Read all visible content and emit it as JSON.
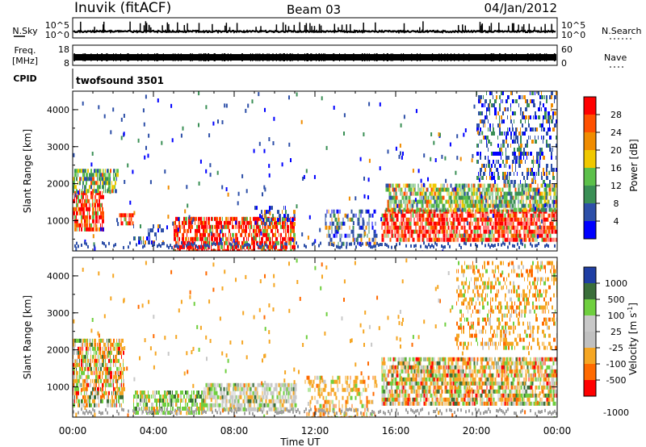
{
  "header": {
    "station": "Inuvik (fitACF)",
    "beam": "Beam 03",
    "date": "04/Jan/2012"
  },
  "strips": {
    "nsky": {
      "label": "N.Sky",
      "right_label": "N.Search",
      "ticks": [
        "10^5",
        "10^0"
      ],
      "right_ticks": [
        "10^5",
        "10^0"
      ]
    },
    "freq": {
      "label_line1": "Freq.",
      "label_line2": "[MHz]",
      "ticks": [
        "18",
        "8"
      ],
      "right_ticks": [
        "60",
        "0"
      ],
      "right_label": "Nave"
    },
    "cpid": {
      "label": "CPID",
      "value": "twofsound 3501"
    }
  },
  "colors": {
    "power": [
      "#0000ff",
      "#2d4fa8",
      "#3a8f55",
      "#5cc04a",
      "#f0c800",
      "#f08c00",
      "#ff5000",
      "#ff0000"
    ],
    "velocity": [
      "#1f3ea3",
      "#3a6e3a",
      "#6fcf3f",
      "#c8c8c8",
      "#c0c0c0",
      "#f5a623",
      "#ff6a00",
      "#ff0000"
    ],
    "ground_scatter": "#a0a0a0"
  },
  "chart_data": [
    {
      "type": "heatmap",
      "title": "",
      "xlabel": "",
      "ylabel": "Slant Range [km]",
      "x_ticks": [
        "00:00",
        "04:00",
        "08:00",
        "12:00",
        "16:00",
        "20:00",
        "00:00"
      ],
      "y_ticks": [
        "1000",
        "2000",
        "3000",
        "4000"
      ],
      "x_range_hours": [
        0,
        24
      ],
      "ylim": [
        180,
        4500
      ],
      "colorbar": {
        "label": "Power [dB]",
        "ticks": [
          "28",
          "24",
          "20",
          "16",
          "12",
          "8",
          "4"
        ],
        "range": [
          0,
          32
        ]
      },
      "echo_regions": [
        {
          "t": [
            0.0,
            1.5
          ],
          "r": [
            800,
            1800
          ],
          "level": "high"
        },
        {
          "t": [
            0.0,
            2.2
          ],
          "r": [
            1800,
            2400
          ],
          "level": "mid"
        },
        {
          "t": [
            2.3,
            3.0
          ],
          "r": [
            900,
            1200
          ],
          "level": "high"
        },
        {
          "t": [
            3.0,
            4.5
          ],
          "r": [
            400,
            900
          ],
          "level": "low"
        },
        {
          "t": [
            5.0,
            11.0
          ],
          "r": [
            200,
            1100
          ],
          "level": "high"
        },
        {
          "t": [
            9.0,
            11.0
          ],
          "r": [
            900,
            1400
          ],
          "level": "low"
        },
        {
          "t": [
            12.5,
            15.0
          ],
          "r": [
            400,
            1300
          ],
          "level": "low"
        },
        {
          "t": [
            15.3,
            24.0
          ],
          "r": [
            500,
            1300
          ],
          "level": "high"
        },
        {
          "t": [
            15.5,
            24.0
          ],
          "r": [
            1300,
            2000
          ],
          "level": "mid"
        },
        {
          "t": [
            20.0,
            24.0
          ],
          "r": [
            2000,
            4500
          ],
          "level": "low"
        }
      ]
    },
    {
      "type": "heatmap",
      "title": "",
      "xlabel": "Time UT",
      "ylabel": "Slant Range [km]",
      "x_ticks": [
        "00:00",
        "04:00",
        "08:00",
        "12:00",
        "16:00",
        "20:00",
        "00:00"
      ],
      "y_ticks": [
        "1000",
        "2000",
        "3000",
        "4000"
      ],
      "x_range_hours": [
        0,
        24
      ],
      "ylim": [
        180,
        4500
      ],
      "colorbar": {
        "label": "Velocity [m s^-1]",
        "ticks": [
          "1000",
          "500",
          "100",
          "25",
          "-25",
          "-100",
          "-500",
          "-1000"
        ],
        "range": [
          -1000,
          1000
        ]
      },
      "echo_regions": [
        {
          "t": [
            0.0,
            2.5
          ],
          "r": [
            500,
            2300
          ],
          "type": "mixed"
        },
        {
          "t": [
            3.0,
            6.5
          ],
          "r": [
            300,
            900
          ],
          "type": "green"
        },
        {
          "t": [
            6.5,
            11.0
          ],
          "r": [
            400,
            1100
          ],
          "type": "ground"
        },
        {
          "t": [
            11.5,
            15.0
          ],
          "r": [
            200,
            1300
          ],
          "type": "orange"
        },
        {
          "t": [
            15.3,
            24.0
          ],
          "r": [
            500,
            1800
          ],
          "type": "mixed"
        },
        {
          "t": [
            19.0,
            24.0
          ],
          "r": [
            2000,
            4400
          ],
          "type": "orange"
        }
      ]
    }
  ]
}
